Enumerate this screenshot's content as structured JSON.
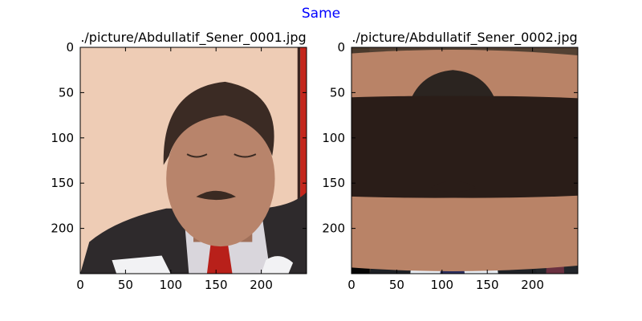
{
  "figure": {
    "suptitle": "Same",
    "suptitle_color": "#0000ff"
  },
  "chart_data": [
    {
      "type": "image",
      "title": "./picture/Abdullatif_Sener_0001.jpg",
      "xlim": [
        0,
        250
      ],
      "ylim": [
        250,
        0
      ],
      "xticks": [
        0,
        50,
        100,
        150,
        200
      ],
      "yticks": [
        0,
        50,
        100,
        150,
        200
      ],
      "grid": false,
      "content": {
        "background": "#eeccb5",
        "accent_stripe": "#c4261c",
        "suit": "#2e2a2c",
        "shirt": "#d9d6dc",
        "tie": "#b8201a",
        "skin": "#b8846b",
        "hair": "#3b2b24",
        "paper": "#f2f2f4"
      }
    },
    {
      "type": "image",
      "title": "./picture/Abdullatif_Sener_0002.jpg",
      "xlim": [
        0,
        250
      ],
      "ylim": [
        250,
        0
      ],
      "xticks": [
        0,
        50,
        100,
        150,
        200
      ],
      "yticks": [
        0,
        50,
        100,
        150,
        200
      ],
      "grid": false,
      "content": {
        "background": "#3a3028",
        "left_border": "#050505",
        "suit": "#1e2126",
        "shirt": "#e6ecf3",
        "tie": "#2c2f5e",
        "skin": "#b98367",
        "hair": "#2b2420",
        "second_person_hair": "#d9d4cc",
        "second_person_skin": "#c49a86",
        "second_person_tie": "#6a3040"
      }
    }
  ]
}
